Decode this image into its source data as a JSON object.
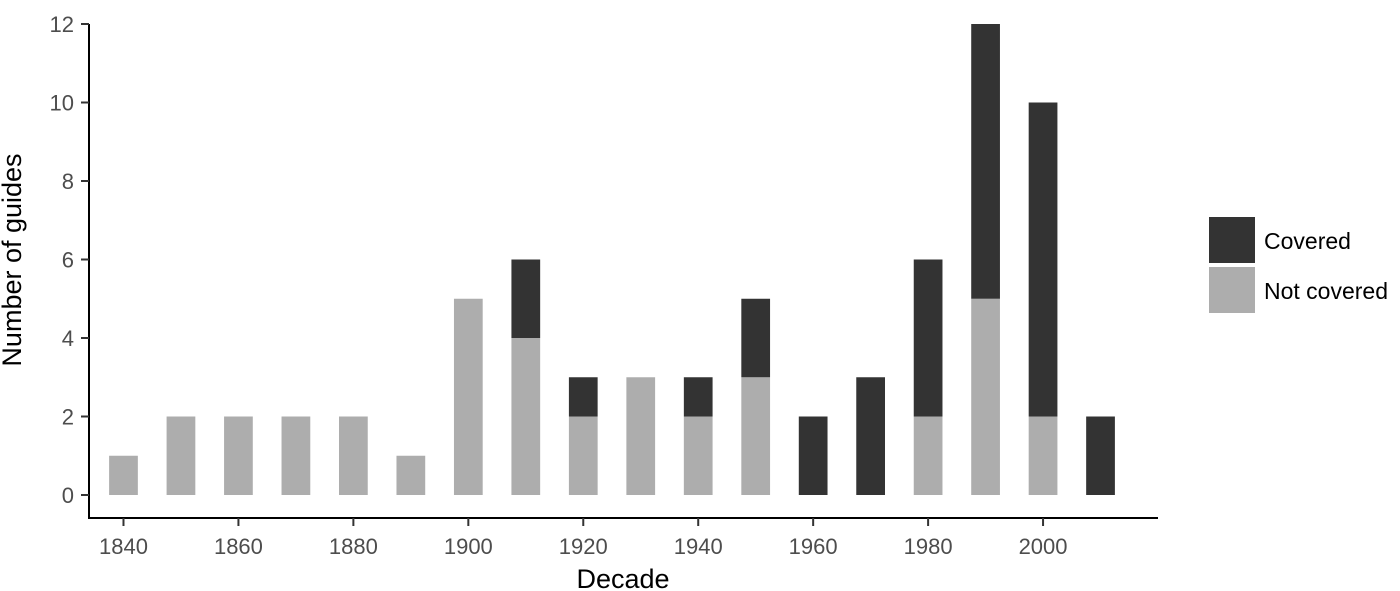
{
  "chart_data": {
    "type": "bar",
    "stacked": true,
    "x": [
      1840,
      1850,
      1860,
      1870,
      1880,
      1890,
      1900,
      1910,
      1920,
      1930,
      1940,
      1950,
      1960,
      1970,
      1980,
      1990,
      2000,
      2010
    ],
    "series": [
      {
        "name": "Not covered",
        "color": "#adadad",
        "values": [
          1,
          2,
          2,
          2,
          2,
          1,
          5,
          4,
          2,
          3,
          2,
          3,
          0,
          0,
          2,
          5,
          2,
          0
        ]
      },
      {
        "name": "Covered",
        "color": "#333333",
        "values": [
          0,
          0,
          0,
          0,
          0,
          0,
          0,
          2,
          1,
          0,
          1,
          2,
          2,
          3,
          4,
          7,
          8,
          2
        ]
      }
    ],
    "xlabel": "Decade",
    "ylabel": "Number of guides",
    "x_ticks": [
      "1840",
      "1860",
      "1880",
      "1900",
      "1920",
      "1940",
      "1960",
      "1980",
      "2000"
    ],
    "y_ticks": [
      "0",
      "2",
      "4",
      "6",
      "8",
      "10",
      "12"
    ],
    "ylim": [
      0,
      12
    ],
    "xlim": [
      1834,
      2020
    ],
    "grid": false,
    "legend": {
      "position": "right",
      "entries": [
        {
          "label": "Covered",
          "color": "#333333"
        },
        {
          "label": "Not covered",
          "color": "#adadad"
        }
      ]
    }
  }
}
